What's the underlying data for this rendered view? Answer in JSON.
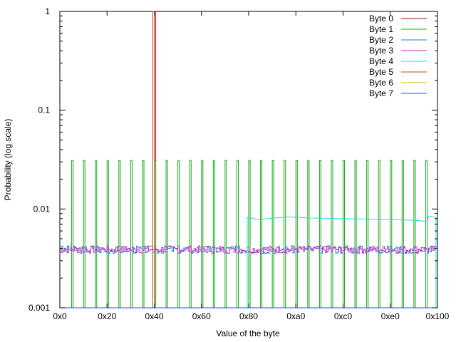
{
  "chart_data": {
    "type": "line",
    "step": true,
    "xlabel": "Value of the byte",
    "ylabel": "Probability (log scale)",
    "yscale": "log",
    "xlim": [
      0,
      256
    ],
    "ylim": [
      0.001,
      1
    ],
    "grid": false,
    "legend_position": "top-right",
    "x_ticks": [
      {
        "value": 0,
        "label": "0x0"
      },
      {
        "value": 32,
        "label": "0x20"
      },
      {
        "value": 64,
        "label": "0x40"
      },
      {
        "value": 96,
        "label": "0x60"
      },
      {
        "value": 128,
        "label": "0x80"
      },
      {
        "value": 160,
        "label": "0xa0"
      },
      {
        "value": 192,
        "label": "0xc0"
      },
      {
        "value": 224,
        "label": "0xe0"
      },
      {
        "value": 256,
        "label": "0x100"
      }
    ],
    "y_ticks": [
      {
        "value": 1,
        "label": "1"
      },
      {
        "value": 0.1,
        "label": "0.1"
      },
      {
        "value": 0.01,
        "label": "0.01"
      },
      {
        "value": 0.001,
        "label": "0.001"
      }
    ],
    "series": [
      {
        "name": "Byte 0",
        "color": "#8b1a0e",
        "points": [
          [
            0,
            0.001
          ],
          [
            64,
            0.001
          ],
          [
            64,
            1
          ],
          [
            65,
            1
          ],
          [
            65,
            0.001
          ],
          [
            256,
            0.001
          ]
        ]
      },
      {
        "name": "Byte 1",
        "color": "#1aa71a",
        "spikes": {
          "start": 8,
          "step": 8,
          "count": 31,
          "width": 1,
          "value": 0.031,
          "base": 0.001
        }
      },
      {
        "name": "Byte 2",
        "color": "#1e7fb8",
        "noise": {
          "from": 0,
          "to": 256,
          "mean": 0.0039,
          "amp": 0.00035,
          "seed": 3
        }
      },
      {
        "name": "Byte 3",
        "color": "#cc22cc",
        "noise": {
          "from": 0,
          "to": 256,
          "mean": 0.0039,
          "amp": 0.00035,
          "seed": 7
        }
      },
      {
        "name": "Byte 4",
        "color": "#1ee0e0",
        "points": [
          [
            0,
            0.001
          ],
          [
            127,
            0.001
          ],
          [
            127,
            0.0082
          ],
          [
            135,
            0.0078
          ],
          [
            145,
            0.0081
          ],
          [
            155,
            0.0083
          ],
          [
            170,
            0.0081
          ],
          [
            190,
            0.008
          ],
          [
            210,
            0.0079
          ],
          [
            240,
            0.0077
          ],
          [
            249,
            0.0075
          ],
          [
            250,
            0.0085
          ],
          [
            255,
            0.0082
          ],
          [
            255,
            0.001
          ]
        ]
      },
      {
        "name": "Byte 5",
        "color": "#d2401a",
        "points": [
          [
            0,
            0.001
          ],
          [
            63,
            0.001
          ],
          [
            63,
            1
          ],
          [
            64,
            1
          ],
          [
            64,
            0.001
          ],
          [
            256,
            0.001
          ]
        ]
      },
      {
        "name": "Byte 6",
        "color": "#c8c800",
        "points": [
          [
            0,
            0.001
          ],
          [
            256,
            0.001
          ]
        ]
      },
      {
        "name": "Byte 7",
        "color": "#2255dd",
        "points": [
          [
            0,
            0.001
          ],
          [
            256,
            0.001
          ]
        ]
      }
    ]
  }
}
